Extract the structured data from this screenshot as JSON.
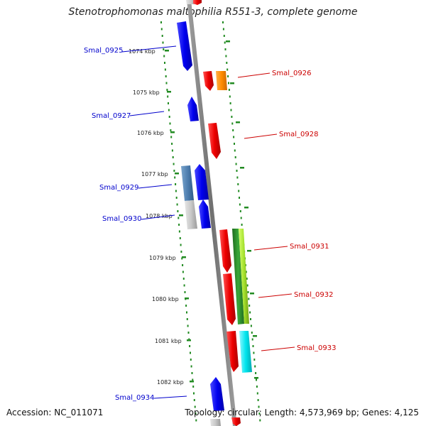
{
  "title": "Stenotrophomonas maltophilia R551-3, complete genome",
  "footer": {
    "accession": "Accession: NC_011071",
    "topology": "Topology: circular; Length: 4,573,969 bp; Genes: 4,125"
  },
  "scale": {
    "labels": [
      "1074 kbp",
      "1075 kbp",
      "1076 kbp",
      "1077 kbp",
      "1078 kbp",
      "1079 kbp",
      "1080 kbp",
      "1081 kbp",
      "1082 kbp"
    ]
  },
  "genes": [
    {
      "name": "Smal_0925",
      "strand": "left",
      "color": "#0000cc"
    },
    {
      "name": "Smal_0926",
      "strand": "right",
      "color": "#cc0000"
    },
    {
      "name": "Smal_0927",
      "strand": "left",
      "color": "#0000cc"
    },
    {
      "name": "Smal_0928",
      "strand": "right",
      "color": "#cc0000"
    },
    {
      "name": "Smal_0929",
      "strand": "left",
      "color": "#0000cc"
    },
    {
      "name": "Smal_0930",
      "strand": "left",
      "color": "#0000cc"
    },
    {
      "name": "Smal_0931",
      "strand": "right",
      "color": "#cc0000"
    },
    {
      "name": "Smal_0932",
      "strand": "right",
      "color": "#cc0000"
    },
    {
      "name": "Smal_0933",
      "strand": "right",
      "color": "#cc0000"
    },
    {
      "name": "Smal_0934",
      "strand": "left",
      "color": "#0000cc"
    }
  ],
  "colors": {
    "backbone": "#808080",
    "dots": "#228b22",
    "blue_gene": "#0000ee",
    "red_gene": "#ee0000",
    "orange_gene": "#ff8c00",
    "steel_gene": "#4f7fb0",
    "silver_gene": "#c0c0c0",
    "green_gene": "#2e8b2e",
    "lime_gene": "#a6e22e",
    "cyan_gene": "#00e5ee"
  }
}
